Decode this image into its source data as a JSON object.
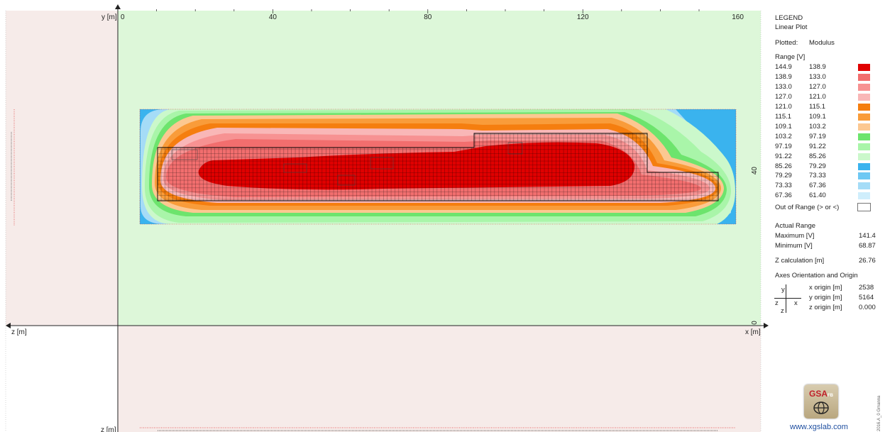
{
  "chart_data": {
    "type": "heatmap",
    "plot_type": "Linear Plot",
    "x_axis": {
      "label": "x [m]",
      "ticks": [
        "0",
        "40",
        "80",
        "120",
        "160"
      ],
      "range": [
        0,
        168
      ]
    },
    "y_axis": {
      "label": "y [m]",
      "ticks": [
        "0",
        "40"
      ],
      "range": [
        0,
        76
      ]
    },
    "z_axis": {
      "label": "z [m]"
    },
    "contour_levels_V": [
      {
        "from": "144.9",
        "to": "138.9",
        "color": "#e00000"
      },
      {
        "from": "138.9",
        "to": "133.0",
        "color": "#f26e6e"
      },
      {
        "from": "133.0",
        "to": "127.0",
        "color": "#f79292"
      },
      {
        "from": "127.0",
        "to": "121.0",
        "color": "#f9b7b7"
      },
      {
        "from": "121.0",
        "to": "115.1",
        "color": "#f57e0f"
      },
      {
        "from": "115.1",
        "to": "109.1",
        "color": "#f99c3a"
      },
      {
        "from": "109.1",
        "to": "103.2",
        "color": "#fcc891"
      },
      {
        "from": "103.2",
        "to": "97.19",
        "color": "#6de46d"
      },
      {
        "from": "97.19",
        "to": "91.22",
        "color": "#a9f5a9"
      },
      {
        "from": "91.22",
        "to": "85.26",
        "color": "#cbf8cb"
      },
      {
        "from": "85.26",
        "to": "79.29",
        "color": "#3ab3ee"
      },
      {
        "from": "79.29",
        "to": "73.33",
        "color": "#6ec8f3"
      },
      {
        "from": "73.33",
        "to": "67.36",
        "color": "#a5dcf7"
      },
      {
        "from": "67.36",
        "to": "61.40",
        "color": "#cfeefc"
      }
    ],
    "actual_range": {
      "max": 141.4,
      "min": 68.87
    }
  },
  "legend": {
    "title": "LEGEND",
    "subtitle": "Linear Plot",
    "plotted_label": "Plotted:",
    "plotted_value": "Modulus",
    "range_label": "Range [V]",
    "out_of_range": "Out of Range (> or <)",
    "actual_range_title": "Actual Range",
    "maximum_label": "Maximum [V]",
    "maximum_value": "141.4",
    "minimum_label": "Minimum [V]",
    "minimum_value": "68.87",
    "zcalc_label": "Z calculation [m]",
    "zcalc_value": "26.76",
    "axes_title": "Axes Orientation and Origin",
    "x_origin_label": "x origin [m]",
    "x_origin_value": "2538",
    "y_origin_label": "y origin [m]",
    "y_origin_value": "5164",
    "z_origin_label": "z origin [m]",
    "z_origin_value": "0.000",
    "axes_glyph_y": "y",
    "axes_glyph_z": "z",
    "axes_glyph_x": "x",
    "axes_glyph_z2": "z",
    "brand": "GSA",
    "brand_suffix": "FB",
    "website": "www.xgslab.com",
    "version_stamp": "2016.A_0 Gmanna"
  },
  "colors": {
    "plot_background": "#ddf7d9",
    "side_panel": "#f6ebe9",
    "grid_mesh": "#000000"
  }
}
